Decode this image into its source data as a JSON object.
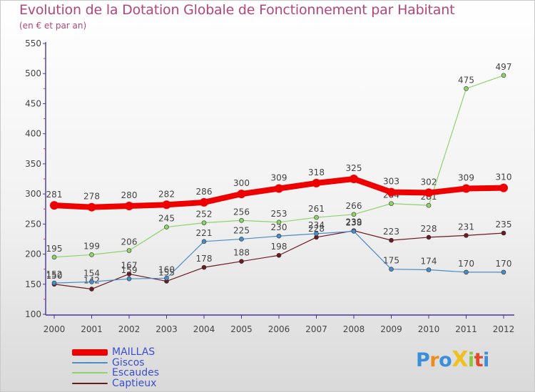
{
  "title": "Evolution de la Dotation Globale de Fonctionnement par Habitant",
  "subtitle": "(en € et par an)",
  "logo": {
    "text": "ProXiti",
    "letters": [
      {
        "ch": "P",
        "color": "#3a8fd8"
      },
      {
        "ch": "r",
        "color": "#f08c1e"
      },
      {
        "ch": "o",
        "color": "#3a8fd8"
      },
      {
        "ch": "X",
        "color": "#f0c020"
      },
      {
        "ch": "i",
        "color": "#8cc63f"
      },
      {
        "ch": "t",
        "color": "#e04a2a"
      },
      {
        "ch": "i",
        "color": "#3a8fd8"
      }
    ]
  },
  "colors": {
    "accent": "#b4457a",
    "axis": "#4b33a1",
    "label": "#444444",
    "grid": "#dddddd"
  },
  "chart_data": {
    "type": "line",
    "title": "Evolution de la Dotation Globale de Fonctionnement par Habitant",
    "subtitle": "(en € et par an)",
    "xlabel": "",
    "ylabel": "",
    "ylim": [
      100,
      550
    ],
    "yticks": [
      100,
      150,
      200,
      250,
      300,
      350,
      400,
      450,
      500,
      550
    ],
    "grid": false,
    "legend_position": "bottom-left",
    "x": [
      "2000",
      "2001",
      "2002",
      "2003",
      "2004",
      "2005",
      "2006",
      "2007",
      "2008",
      "2009",
      "2010",
      "2011",
      "2012"
    ],
    "series": [
      {
        "name": "Captieux",
        "color": "#6b1a22",
        "values": [
          150,
          142,
          167,
          155,
          178,
          188,
          198,
          228,
          239,
          223,
          228,
          231,
          235
        ],
        "width": 1.2,
        "marker": 3
      },
      {
        "name": "Giscos",
        "color": "#4a8cc8",
        "values": [
          152,
          154,
          159,
          160,
          221,
          225,
          230,
          234,
          238,
          175,
          174,
          170,
          170
        ],
        "width": 1.2,
        "marker": 3
      },
      {
        "name": "Escaudes",
        "color": "#8ed36a",
        "values": [
          195,
          199,
          206,
          245,
          252,
          256,
          253,
          261,
          266,
          284,
          281,
          475,
          497
        ],
        "width": 1.2,
        "marker": 3
      },
      {
        "name": "MAILLAS",
        "color": "#ee0000",
        "values": [
          281,
          278,
          280,
          282,
          286,
          300,
          309,
          318,
          325,
          303,
          302,
          309,
          310
        ],
        "width": 8,
        "marker": 6
      }
    ],
    "legend": [
      "MAILLAS",
      "Giscos",
      "Escaudes",
      "Captieux"
    ]
  }
}
